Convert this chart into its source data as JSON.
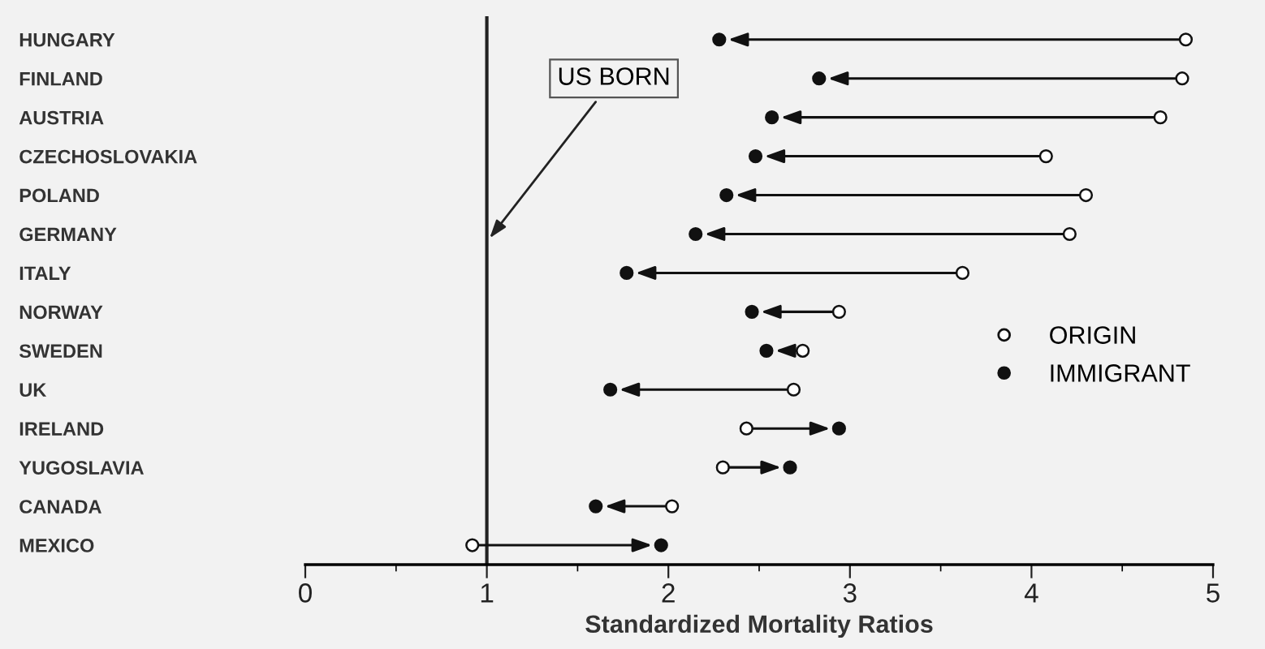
{
  "chart_data": {
    "type": "scatter",
    "xlabel": "Standardized Mortality Ratios",
    "categories": [
      "HUNGARY",
      "FINLAND",
      "AUSTRIA",
      "CZECHOSLOVAKIA",
      "POLAND",
      "GERMANY",
      "ITALY",
      "NORWAY",
      "SWEDEN",
      "UK",
      "IRELAND",
      "YUGOSLAVIA",
      "CANADA",
      "MEXICO"
    ],
    "orientation": "horizontal",
    "series": [
      {
        "name": "ORIGIN",
        "color": "#ffffff",
        "marker": "circle",
        "values": [
          4.85,
          4.83,
          4.71,
          4.08,
          4.3,
          4.21,
          3.62,
          2.94,
          2.74,
          2.69,
          2.43,
          2.3,
          2.02,
          0.92
        ]
      },
      {
        "name": "IMMIGRANT",
        "color": "#111111",
        "marker": "circle",
        "values": [
          2.28,
          2.83,
          2.57,
          2.48,
          2.32,
          2.15,
          1.77,
          2.46,
          2.54,
          1.68,
          2.94,
          2.67,
          1.6,
          1.96
        ]
      }
    ],
    "xlim": [
      0,
      5
    ],
    "xticks": [
      0,
      1,
      2,
      3,
      4,
      5
    ],
    "ref_lines": [
      {
        "axis": "x",
        "value": 1,
        "label": "US BORN",
        "color": "#222222"
      }
    ],
    "legend": "right",
    "grid": false
  }
}
